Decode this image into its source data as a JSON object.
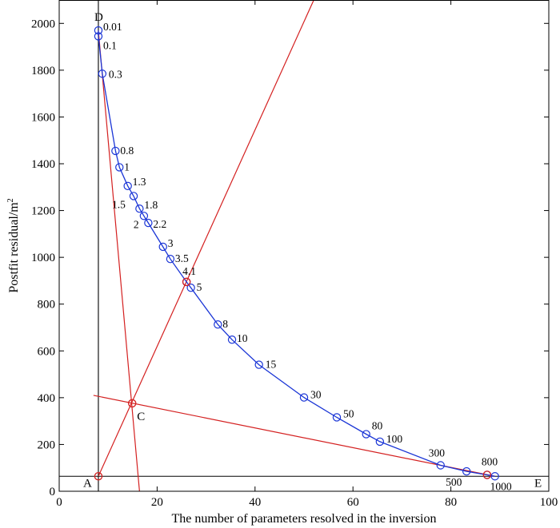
{
  "chart_data": {
    "type": "line",
    "xlabel": "The number of parameters resolved in the inversion",
    "ylabel": "Postfit residual/m",
    "ylabel_sup": "2",
    "xlim": [
      0,
      100
    ],
    "ylim": [
      0,
      2100
    ],
    "xticks": [
      0,
      20,
      40,
      60,
      80,
      100
    ],
    "yticks": [
      0,
      200,
      400,
      600,
      800,
      1000,
      1200,
      1400,
      1600,
      1800,
      2000
    ],
    "grid": false,
    "series": [
      {
        "color": "#1a35d6",
        "points": [
          {
            "x": 8.0,
            "y": 1970,
            "label": "0.01"
          },
          {
            "x": 8.0,
            "y": 1945,
            "label": "0.1"
          },
          {
            "x": 8.8,
            "y": 1785,
            "label": "0.3"
          },
          {
            "x": 11.5,
            "y": 1455,
            "label": "0.8"
          },
          {
            "x": 12.3,
            "y": 1385,
            "label": "1"
          },
          {
            "x": 14.0,
            "y": 1305,
            "label": "1.3"
          },
          {
            "x": 15.2,
            "y": 1262,
            "label": "1.5"
          },
          {
            "x": 16.4,
            "y": 1208,
            "label": "1.8"
          },
          {
            "x": 17.3,
            "y": 1177,
            "label": "2"
          },
          {
            "x": 18.2,
            "y": 1147,
            "label": "2.2"
          },
          {
            "x": 21.2,
            "y": 1045,
            "label": "3"
          },
          {
            "x": 22.7,
            "y": 993,
            "label": "3.5"
          },
          {
            "x": 26.0,
            "y": 895,
            "label": "4.1"
          },
          {
            "x": 26.9,
            "y": 870,
            "label": "5"
          },
          {
            "x": 32.4,
            "y": 713,
            "label": "8"
          },
          {
            "x": 35.3,
            "y": 648,
            "label": "10"
          },
          {
            "x": 40.8,
            "y": 541,
            "label": "15"
          },
          {
            "x": 50.0,
            "y": 401,
            "label": "30"
          },
          {
            "x": 56.7,
            "y": 316,
            "label": "50"
          },
          {
            "x": 62.7,
            "y": 244,
            "label": "80"
          },
          {
            "x": 65.5,
            "y": 212,
            "label": "100"
          },
          {
            "x": 77.9,
            "y": 111,
            "label": "300"
          },
          {
            "x": 83.2,
            "y": 85,
            "label": "500"
          },
          {
            "x": 87.4,
            "y": 70,
            "label": "800"
          },
          {
            "x": 89.0,
            "y": 64,
            "label": "1000"
          }
        ]
      }
    ],
    "construction": {
      "color": "#d42020",
      "red_lines": [
        {
          "from": [
            8.0,
            1970
          ],
          "to": [
            16.4,
            0
          ]
        },
        {
          "from": [
            8.0,
            64
          ],
          "to": [
            52,
            2100
          ]
        },
        {
          "from": [
            7.0,
            410
          ],
          "to": [
            89.0,
            64
          ]
        }
      ],
      "black_lines": [
        {
          "from": [
            8.0,
            2100
          ],
          "to": [
            8.0,
            0
          ]
        },
        {
          "from": [
            0,
            64
          ],
          "to": [
            100,
            64
          ]
        }
      ],
      "red_markers": [
        {
          "x": 8.0,
          "y": 64
        },
        {
          "x": 14.9,
          "y": 376
        },
        {
          "x": 26.0,
          "y": 895
        },
        {
          "x": 87.4,
          "y": 70
        }
      ],
      "key_points": [
        {
          "label": "D",
          "x": 8.0,
          "y": 2100
        },
        {
          "label": "A",
          "x": 8.0,
          "y": 64
        },
        {
          "label": "C",
          "x": 14.9,
          "y": 376
        },
        {
          "label": "E",
          "x": 100,
          "y": 64
        }
      ]
    }
  }
}
